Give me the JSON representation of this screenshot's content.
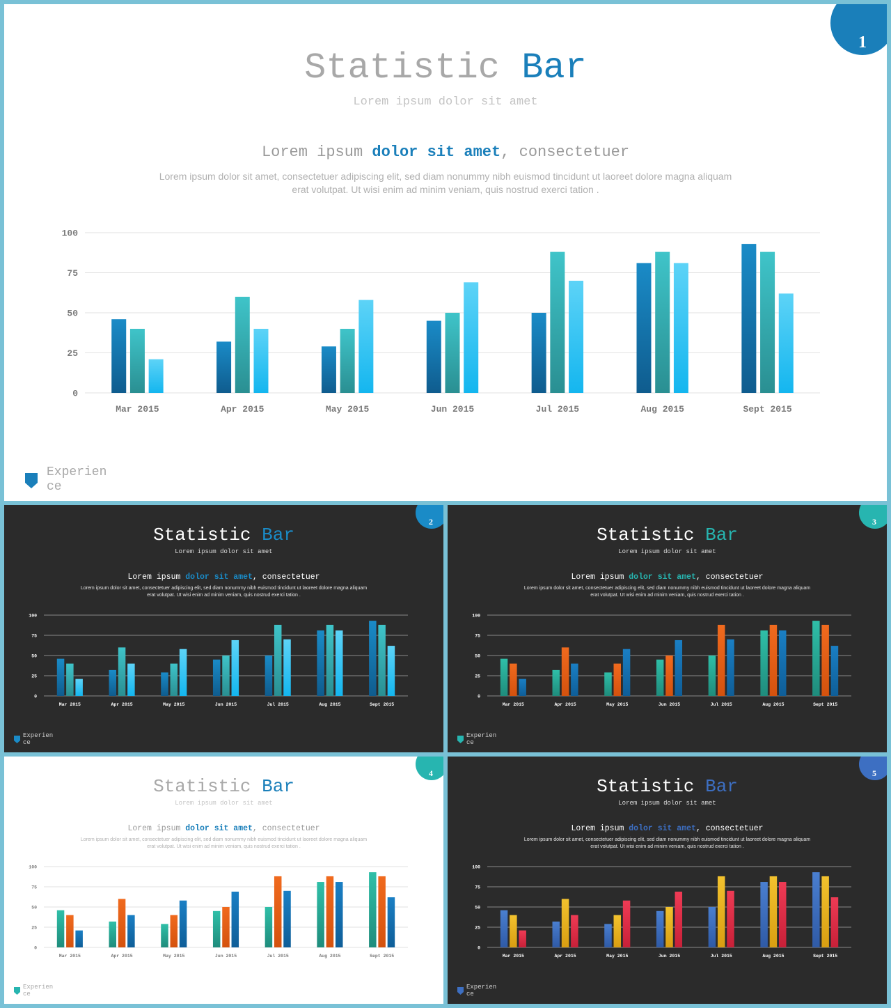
{
  "colors": {
    "frame": "#79c1d6",
    "light_bg": "#ffffff",
    "dark_bg": "#2b2b2b",
    "blue": "#1a7fba",
    "teal": "#27b5b0",
    "orange": "#e8621a",
    "yellow": "#e8b620",
    "red": "#e0314a",
    "royal": "#3d6fc2"
  },
  "slides": [
    {
      "number": "1",
      "theme": "light",
      "badge_color": "#1a7fba",
      "title_main": "Statistic",
      "title_accent": "Bar",
      "accent_color": "#1a7fba",
      "subtitle": "Lorem ipsum dolor sit amet",
      "heading_pre": "Lorem ipsum ",
      "heading_accent": "dolor sit amet",
      "heading_post": ", consectetuer",
      "para_line1": "Lorem ipsum dolor sit amet, consectetuer adipiscing elit, sed diam nonummy  nibh euismod tincidunt ut laoreet dolore magna aliquam",
      "para_line2": "erat volutpat. Ut wisi enim ad minim veniam, quis nostrud exerci tation .",
      "logo_line1": "Experien",
      "logo_line2": "ce",
      "logo_color": "#1a7fba",
      "series_colors": [
        [
          "#1a8bc7",
          "#0f5c8e"
        ],
        [
          "#3fc4c9",
          "#2a8f92"
        ],
        [
          "#5dd3f7",
          "#14b6ef"
        ]
      ]
    },
    {
      "number": "2",
      "theme": "dark",
      "badge_color": "#1a8bc7",
      "title_main": "Statistic",
      "title_accent": "Bar",
      "accent_color": "#1a8bc7",
      "subtitle": "Lorem ipsum dolor sit amet",
      "heading_pre": "Lorem ipsum ",
      "heading_accent": "dolor sit amet",
      "heading_post": ", consectetuer",
      "para_line1": "Lorem ipsum dolor sit amet, consectetuer adipiscing elit, sed diam nonummy  nibh euismod tincidunt ut laoreet dolore magna aliquam",
      "para_line2": "erat volutpat. Ut wisi enim ad minim veniam, quis nostrud exerci tation .",
      "logo_line1": "Experien",
      "logo_line2": "ce",
      "logo_color": "#1a8bc7",
      "series_colors": [
        [
          "#1a8bc7",
          "#0f5c8e"
        ],
        [
          "#3fc4c9",
          "#2a8f92"
        ],
        [
          "#5dd3f7",
          "#14b6ef"
        ]
      ]
    },
    {
      "number": "3",
      "theme": "dark",
      "badge_color": "#27b5b0",
      "title_main": "Statistic",
      "title_accent": "Bar",
      "accent_color": "#27b5b0",
      "subtitle": "Lorem ipsum dolor sit amet",
      "heading_pre": "Lorem ipsum ",
      "heading_accent": "dolor sit amet",
      "heading_post": ", consectetuer",
      "para_line1": "Lorem ipsum dolor sit amet, consectetuer adipiscing elit, sed diam nonummy  nibh euismod tincidunt ut laoreet dolore magna aliquam",
      "para_line2": "erat volutpat. Ut wisi enim ad minim veniam, quis nostrud exerci tation .",
      "logo_line1": "Experien",
      "logo_line2": "ce",
      "logo_color": "#27b5b0",
      "series_colors": [
        [
          "#2fbfa8",
          "#1f8c7c"
        ],
        [
          "#f06a1e",
          "#d4520e"
        ],
        [
          "#1a7fc4",
          "#0f5e98"
        ]
      ]
    },
    {
      "number": "4",
      "theme": "light",
      "badge_color": "#27b5b0",
      "title_main": "Statistic",
      "title_accent": "Bar",
      "accent_color": "#1a7fba",
      "subtitle": "Lorem ipsum dolor sit amet",
      "heading_pre": "Lorem ipsum ",
      "heading_accent": "dolor sit amet",
      "heading_post": ", consectetuer",
      "para_line1": "Lorem ipsum dolor sit amet, consectetuer adipiscing elit, sed diam nonummy  nibh euismod tincidunt ut laoreet dolore magna aliquam",
      "para_line2": "erat volutpat. Ut wisi enim ad minim veniam, quis nostrud exerci tation .",
      "logo_line1": "Experien",
      "logo_line2": "ce",
      "logo_color": "#27b5b0",
      "series_colors": [
        [
          "#2fbfa8",
          "#1f8c7c"
        ],
        [
          "#f06a1e",
          "#d4520e"
        ],
        [
          "#1a7fc4",
          "#0f5e98"
        ]
      ]
    },
    {
      "number": "5",
      "theme": "dark",
      "badge_color": "#3d6fc2",
      "title_main": "Statistic",
      "title_accent": "Bar",
      "accent_color": "#3d6fc2",
      "subtitle": "Lorem ipsum dolor sit amet",
      "heading_pre": "Lorem ipsum ",
      "heading_accent": "dolor sit amet",
      "heading_post": ", consectetuer",
      "para_line1": "Lorem ipsum dolor sit amet, consectetuer adipiscing elit, sed diam nonummy  nibh euismod tincidunt ut laoreet dolore magna aliquam",
      "para_line2": "erat volutpat. Ut wisi enim ad minim veniam, quis nostrud exerci tation .",
      "logo_line1": "Experien",
      "logo_line2": "ce",
      "logo_color": "#3d6fc2",
      "series_colors": [
        [
          "#4a7fd0",
          "#2f5aa6"
        ],
        [
          "#f2c22e",
          "#d99e12"
        ],
        [
          "#ef3b55",
          "#c82038"
        ]
      ]
    }
  ],
  "chart_data": {
    "type": "bar",
    "categories": [
      "Mar 2015",
      "Apr 2015",
      "May 2015",
      "Jun 2015",
      "Jul 2015",
      "Aug 2015",
      "Sept 2015"
    ],
    "series": [
      {
        "values": [
          46,
          32,
          29,
          45,
          50,
          81,
          93
        ]
      },
      {
        "values": [
          40,
          60,
          40,
          50,
          88,
          88,
          88
        ]
      },
      {
        "values": [
          21,
          40,
          58,
          69,
          70,
          81,
          62
        ]
      }
    ],
    "yticks": [
      "0",
      "25",
      "50",
      "75",
      "100"
    ],
    "ylim": [
      0,
      100
    ],
    "grid": true,
    "legend": "none"
  }
}
